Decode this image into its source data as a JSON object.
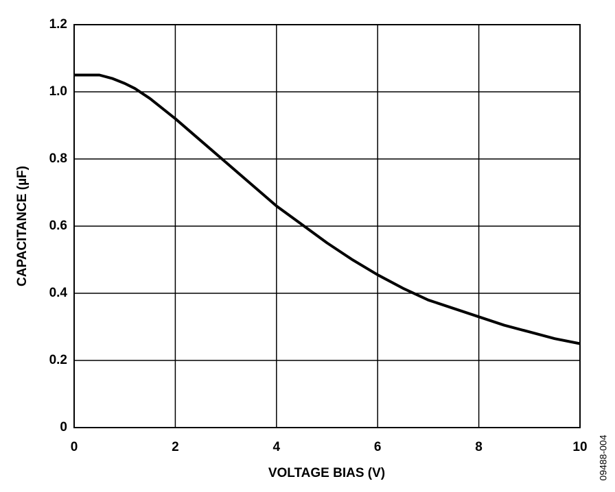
{
  "chart_data": {
    "type": "line",
    "xlabel": "VOLTAGE BIAS (V)",
    "ylabel": "CAPACITANCE (µF)",
    "annotation": "09488-004",
    "x": [
      0,
      0.5,
      0.75,
      1,
      1.2,
      1.5,
      2,
      2.5,
      3,
      3.5,
      4,
      4.5,
      5,
      5.5,
      6,
      6.5,
      7,
      7.5,
      8,
      8.5,
      9,
      9.5,
      10
    ],
    "series": [
      {
        "color": "#000000",
        "values": [
          1.05,
          1.05,
          1.04,
          1.025,
          1.01,
          0.98,
          0.92,
          0.855,
          0.79,
          0.725,
          0.66,
          0.605,
          0.55,
          0.5,
          0.455,
          0.415,
          0.38,
          0.355,
          0.33,
          0.305,
          0.285,
          0.265,
          0.25
        ]
      }
    ],
    "xlim": [
      0,
      10
    ],
    "xticks": [
      0,
      2,
      4,
      6,
      8,
      10
    ],
    "ylim": [
      0,
      1.2
    ],
    "yticks": [
      0,
      0.2,
      0.4,
      0.6,
      0.8,
      {
        "value": 1,
        "label": "1.0"
      },
      1.2
    ],
    "grid": true
  }
}
